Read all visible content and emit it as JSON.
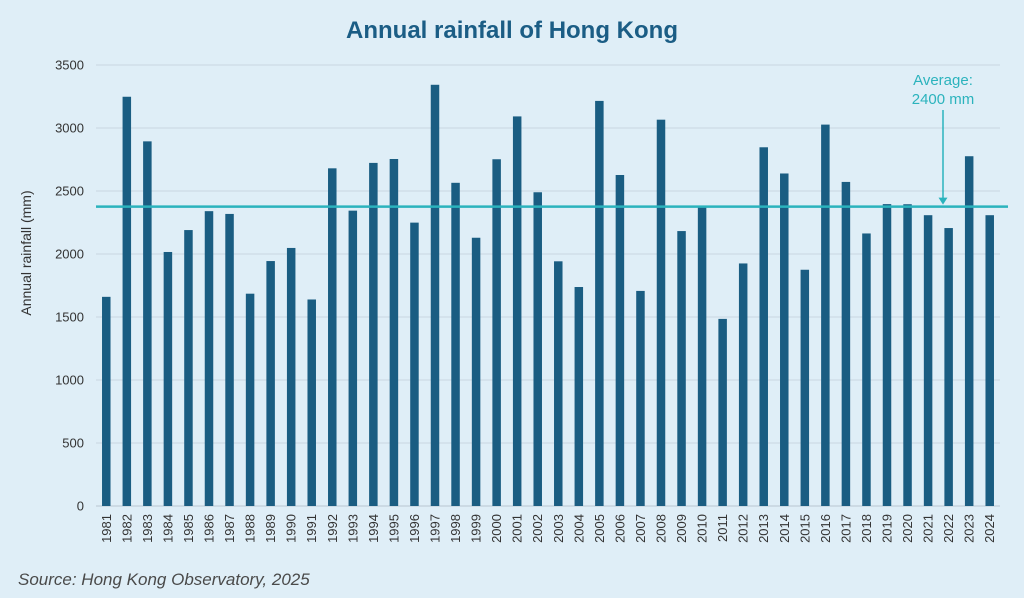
{
  "chart_data": {
    "type": "bar",
    "title": "Annual rainfall of Hong Kong",
    "ylabel": "Annual rainfall (mm)",
    "xlabel": "",
    "ylim": [
      0,
      3500
    ],
    "yticks": [
      0,
      500,
      1000,
      1500,
      2000,
      2500,
      3000,
      3500
    ],
    "grid": true,
    "categories": [
      "1981",
      "1982",
      "1983",
      "1984",
      "1985",
      "1986",
      "1987",
      "1988",
      "1989",
      "1990",
      "1991",
      "1992",
      "1993",
      "1994",
      "1995",
      "1996",
      "1997",
      "1998",
      "1999",
      "2000",
      "2001",
      "2002",
      "2003",
      "2004",
      "2005",
      "2006",
      "2007",
      "2008",
      "2009",
      "2010",
      "2011",
      "2012",
      "2013",
      "2014",
      "2015",
      "2016",
      "2017",
      "2018",
      "2019",
      "2020",
      "2021",
      "2022",
      "2023",
      "2024"
    ],
    "values": [
      1660,
      3248,
      2894,
      2016,
      2190,
      2340,
      2318,
      1685,
      1944,
      2048,
      1639,
      2680,
      2344,
      2723,
      2754,
      2249,
      3343,
      2565,
      2129,
      2752,
      3092,
      2490,
      1942,
      1738,
      3215,
      2627,
      1707,
      3066,
      2182,
      2372,
      1485,
      1925,
      2847,
      2639,
      1875,
      3027,
      2572,
      2163,
      2396,
      2395,
      2308,
      2206,
      2776,
      2308
    ],
    "bar_color": "#1a5d82",
    "reference_line": {
      "value": 2376,
      "label_line1": "Average:",
      "label_line2": "2400 mm",
      "color": "#2bb3bd"
    },
    "source": "Source: Hong Kong Observatory, 2025"
  }
}
